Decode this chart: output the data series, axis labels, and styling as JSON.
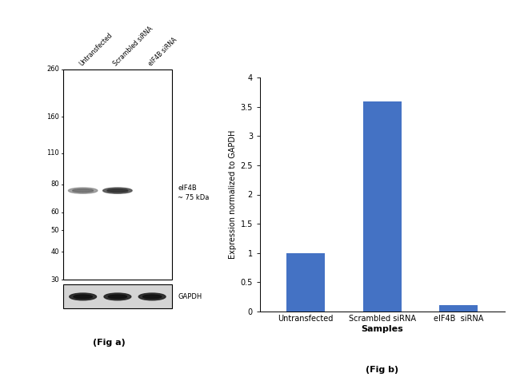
{
  "fig_a_label": "(Fig a)",
  "fig_b_label": "(Fig b)",
  "wb_marker_values": [
    260,
    160,
    110,
    80,
    60,
    50,
    40,
    30
  ],
  "wb_annotation_line1": "eIF4B",
  "wb_annotation_line2": "~ 75 kDa",
  "gapdh_label": "GAPDH",
  "lane_labels": [
    "Untransfected",
    "Scrambled siRNA",
    "eIF4B siRNA"
  ],
  "bar_values": [
    1.0,
    3.6,
    0.1
  ],
  "bar_color": "#4472C4",
  "bar_categories": [
    "Untransfected",
    "Scrambled siRNA",
    "eIF4B  siRNA"
  ],
  "ylabel": "Expression normalized to GAPDH",
  "xlabel": "Samples",
  "ylim": [
    0,
    4
  ],
  "yticks": [
    0,
    0.5,
    1.0,
    1.5,
    2.0,
    2.5,
    3.0,
    3.5,
    4.0
  ],
  "background_color": "#ffffff",
  "fig_width": 6.5,
  "fig_height": 4.87,
  "wb_blot_bg": "#f5f5f5",
  "wb_band_color": "#555555",
  "gapdh_box_bg": "#d8d8d8"
}
